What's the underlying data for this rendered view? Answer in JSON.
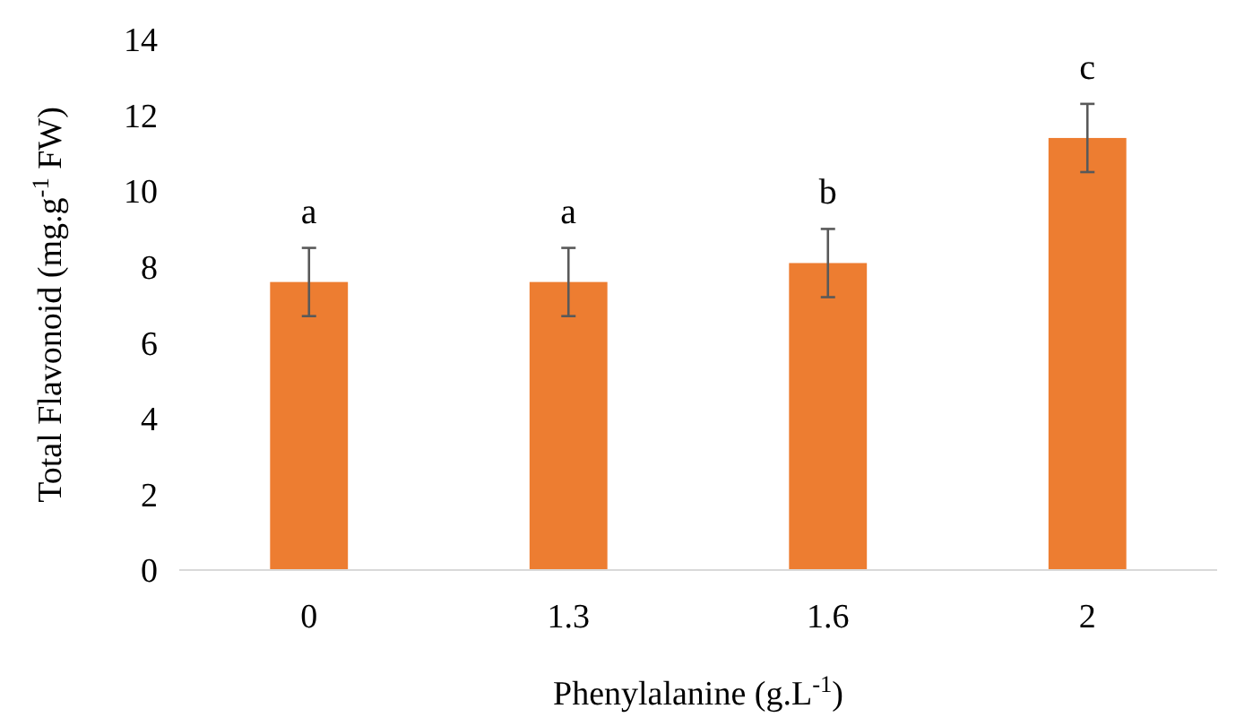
{
  "chart_data": {
    "type": "bar",
    "xlabel": "Phenylalanine (g.L$^{-1}$)",
    "ylabel": "Total Flavonoid (mg.g$^{-1}$ FW)",
    "categories": [
      "0",
      "1.3",
      "1.6",
      "2"
    ],
    "values": [
      7.6,
      7.6,
      8.1,
      11.4
    ],
    "errors": [
      0.9,
      0.9,
      0.9,
      0.9
    ],
    "color": "#ed7d31",
    "ylim": [
      0,
      14
    ],
    "yticks": [
      0,
      2,
      4,
      6,
      8,
      10,
      12,
      14
    ],
    "grid": false,
    "annotations": [
      "a",
      "a",
      "b",
      "c"
    ]
  }
}
